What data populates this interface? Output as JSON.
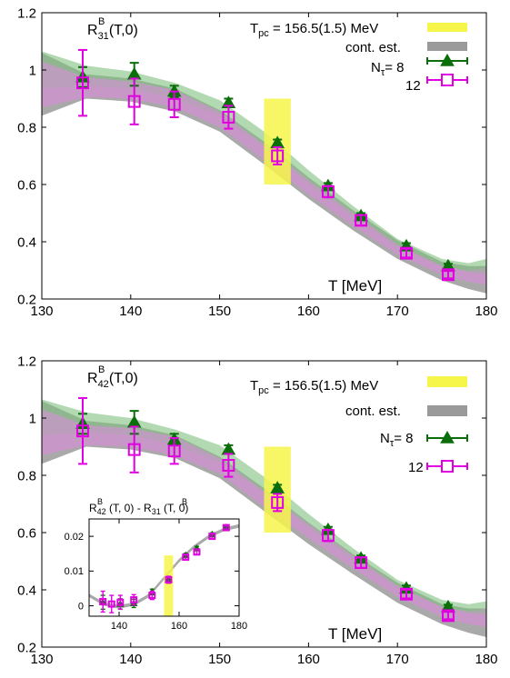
{
  "colors": {
    "nt8": "#0a6e0a",
    "nt12": "#e000e0",
    "nt8_band": "#7fbf7f",
    "nt12_band": "#e08be0",
    "cont_band": "#9a9a9a",
    "tpc_band": "#f6f64a"
  },
  "legend": {
    "tpc": "Tₚₑ = 156.5(1.5) MeV",
    "tpc_main": "T",
    "tpc_sub": "pc",
    "tpc_rest": " = 156.5(1.5) MeV",
    "cont": "cont. est.",
    "nt8_main": "N",
    "nt8_sub": "τ",
    "nt8_rest": "= 8",
    "nt12": "12"
  },
  "chart_data": [
    {
      "type": "scatter",
      "title": "R^B_31(T,0)",
      "title_main": "R",
      "title_sup": "B",
      "title_sub": "31",
      "title_rest": "(T,0)",
      "xlabel": "T [MeV]",
      "ylabel": "",
      "xlim": [
        130,
        180
      ],
      "ylim": [
        0.2,
        1.2
      ],
      "xticks": [
        130,
        140,
        150,
        160,
        170,
        180
      ],
      "xtick_labels": [
        "130",
        "140",
        "150",
        "160",
        "170",
        "180"
      ],
      "yticks": [
        0.2,
        0.4,
        0.6,
        0.8,
        1.0,
        1.2
      ],
      "ytick_labels": [
        "0.2",
        "0.4",
        "0.6",
        "0.8",
        "1",
        "1.2"
      ],
      "tpc_band": {
        "x": [
          155,
          158
        ],
        "y": [
          0.6,
          0.9
        ]
      },
      "legend_position": "top-right",
      "series": [
        {
          "name": "Nτ= 8",
          "marker": "triangle",
          "points": [
            {
              "x": 134.6,
              "y": 0.975,
              "err": 0.035
            },
            {
              "x": 140.4,
              "y": 0.985,
              "err": 0.04
            },
            {
              "x": 144.9,
              "y": 0.925,
              "err": 0.02
            },
            {
              "x": 151.0,
              "y": 0.885,
              "err": 0.015
            },
            {
              "x": 156.5,
              "y": 0.745,
              "err": 0.012
            },
            {
              "x": 162.2,
              "y": 0.595,
              "err": 0.01
            },
            {
              "x": 165.9,
              "y": 0.49,
              "err": 0.01
            },
            {
              "x": 171.0,
              "y": 0.385,
              "err": 0.01
            },
            {
              "x": 175.7,
              "y": 0.315,
              "err": 0.008
            }
          ],
          "band": {
            "x": [
              130,
              135,
              140,
              145,
              150,
              155,
              160,
              165,
              170,
              175,
              178,
              180
            ],
            "lo": [
              0.935,
              0.945,
              0.935,
              0.9,
              0.84,
              0.73,
              0.6,
              0.485,
              0.38,
              0.315,
              0.3,
              0.31
            ],
            "hi": [
              1.065,
              1.015,
              0.995,
              0.955,
              0.895,
              0.785,
              0.65,
              0.525,
              0.41,
              0.34,
              0.325,
              0.34
            ]
          }
        },
        {
          "name": "12",
          "marker": "square-open",
          "points": [
            {
              "x": 134.6,
              "y": 0.955,
              "err": 0.115
            },
            {
              "x": 140.4,
              "y": 0.89,
              "err": 0.08
            },
            {
              "x": 144.9,
              "y": 0.88,
              "err": 0.045
            },
            {
              "x": 151.0,
              "y": 0.835,
              "err": 0.04
            },
            {
              "x": 156.5,
              "y": 0.7,
              "err": 0.03
            },
            {
              "x": 162.2,
              "y": 0.575,
              "err": 0.02
            },
            {
              "x": 165.9,
              "y": 0.475,
              "err": 0.018
            },
            {
              "x": 171.0,
              "y": 0.36,
              "err": 0.015
            },
            {
              "x": 175.7,
              "y": 0.285,
              "err": 0.013
            }
          ],
          "band": {
            "x": [
              130,
              135,
              140,
              145,
              150,
              155,
              160,
              165,
              170,
              175,
              178,
              180
            ],
            "lo": [
              0.87,
              0.905,
              0.9,
              0.87,
              0.8,
              0.685,
              0.565,
              0.455,
              0.355,
              0.285,
              0.26,
              0.25
            ],
            "hi": [
              1.03,
              0.975,
              0.96,
              0.93,
              0.855,
              0.74,
              0.615,
              0.5,
              0.39,
              0.315,
              0.295,
              0.29
            ]
          }
        },
        {
          "name": "cont. est.",
          "marker": "band",
          "band": {
            "x": [
              130,
              135,
              140,
              145,
              150,
              155,
              160,
              165,
              170,
              175,
              178,
              180
            ],
            "lo": [
              0.84,
              0.9,
              0.89,
              0.855,
              0.785,
              0.67,
              0.55,
              0.44,
              0.34,
              0.265,
              0.235,
              0.22
            ],
            "hi": [
              1.06,
              0.985,
              0.97,
              0.935,
              0.86,
              0.75,
              0.625,
              0.51,
              0.405,
              0.33,
              0.315,
              0.315
            ]
          }
        }
      ]
    },
    {
      "type": "scatter",
      "title": "R^B_42(T,0)",
      "title_main": "R",
      "title_sup": "B",
      "title_sub": "42",
      "title_rest": "(T,0)",
      "xlabel": "T [MeV]",
      "ylabel": "",
      "xlim": [
        130,
        180
      ],
      "ylim": [
        0.2,
        1.2
      ],
      "xticks": [
        130,
        140,
        150,
        160,
        170,
        180
      ],
      "xtick_labels": [
        "130",
        "140",
        "150",
        "160",
        "170",
        "180"
      ],
      "yticks": [
        0.2,
        0.4,
        0.6,
        0.8,
        1.0,
        1.2
      ],
      "ytick_labels": [
        "0.2",
        "0.4",
        "0.6",
        "0.8",
        "1",
        "1.2"
      ],
      "tpc_band": {
        "x": [
          155,
          158
        ],
        "y": [
          0.6,
          0.9
        ]
      },
      "legend_position": "top-right",
      "series": [
        {
          "name": "Nτ= 8",
          "marker": "triangle",
          "points": [
            {
              "x": 134.6,
              "y": 0.98,
              "err": 0.035
            },
            {
              "x": 140.4,
              "y": 0.985,
              "err": 0.04
            },
            {
              "x": 144.9,
              "y": 0.925,
              "err": 0.02
            },
            {
              "x": 151.0,
              "y": 0.89,
              "err": 0.015
            },
            {
              "x": 156.5,
              "y": 0.755,
              "err": 0.012
            },
            {
              "x": 162.2,
              "y": 0.61,
              "err": 0.01
            },
            {
              "x": 165.9,
              "y": 0.51,
              "err": 0.01
            },
            {
              "x": 171.0,
              "y": 0.405,
              "err": 0.01
            },
            {
              "x": 175.7,
              "y": 0.34,
              "err": 0.008
            }
          ],
          "band": {
            "x": [
              130,
              135,
              140,
              145,
              150,
              155,
              160,
              165,
              170,
              175,
              178,
              180
            ],
            "lo": [
              0.94,
              0.95,
              0.94,
              0.905,
              0.845,
              0.74,
              0.615,
              0.505,
              0.405,
              0.34,
              0.325,
              0.335
            ],
            "hi": [
              1.065,
              1.02,
              1.0,
              0.96,
              0.905,
              0.795,
              0.665,
              0.545,
              0.435,
              0.365,
              0.35,
              0.36
            ]
          }
        },
        {
          "name": "12",
          "marker": "square-open",
          "points": [
            {
              "x": 134.6,
              "y": 0.955,
              "err": 0.115
            },
            {
              "x": 140.4,
              "y": 0.89,
              "err": 0.08
            },
            {
              "x": 144.9,
              "y": 0.885,
              "err": 0.045
            },
            {
              "x": 151.0,
              "y": 0.835,
              "err": 0.04
            },
            {
              "x": 156.5,
              "y": 0.705,
              "err": 0.03
            },
            {
              "x": 162.2,
              "y": 0.59,
              "err": 0.02
            },
            {
              "x": 165.9,
              "y": 0.495,
              "err": 0.018
            },
            {
              "x": 171.0,
              "y": 0.385,
              "err": 0.015
            },
            {
              "x": 175.7,
              "y": 0.31,
              "err": 0.013
            }
          ],
          "band": {
            "x": [
              130,
              135,
              140,
              145,
              150,
              155,
              160,
              165,
              170,
              175,
              178,
              180
            ],
            "lo": [
              0.87,
              0.905,
              0.9,
              0.87,
              0.805,
              0.69,
              0.58,
              0.475,
              0.375,
              0.305,
              0.28,
              0.27
            ],
            "hi": [
              1.03,
              0.975,
              0.965,
              0.935,
              0.86,
              0.745,
              0.63,
              0.52,
              0.415,
              0.34,
              0.32,
              0.315
            ]
          }
        },
        {
          "name": "cont. est.",
          "marker": "band",
          "band": {
            "x": [
              130,
              135,
              140,
              145,
              150,
              155,
              160,
              165,
              170,
              175,
              178,
              180
            ],
            "lo": [
              0.84,
              0.9,
              0.89,
              0.86,
              0.79,
              0.675,
              0.56,
              0.455,
              0.355,
              0.28,
              0.25,
              0.235
            ],
            "hi": [
              1.06,
              0.99,
              0.975,
              0.94,
              0.865,
              0.755,
              0.635,
              0.525,
              0.425,
              0.35,
              0.335,
              0.335
            ]
          }
        }
      ],
      "inset": {
        "type": "scatter",
        "title": "R^B_42 (T, 0) - R^B_31 (T, 0)",
        "title_a_main": "R",
        "title_a_sup": "B",
        "title_a_sub": "42",
        "title_a_rest": " (T, 0) - R",
        "title_b_sup": "B",
        "title_b_sub": "31",
        "title_b_rest": " (T, 0)",
        "xlim": [
          130,
          180
        ],
        "ylim": [
          -0.003,
          0.025
        ],
        "xticks": [
          140,
          160,
          180
        ],
        "xtick_labels": [
          "140",
          "160",
          "180"
        ],
        "yticks": [
          0,
          0.01,
          0.02
        ],
        "ytick_labels": [
          "0",
          "0.01",
          "0.02"
        ],
        "tpc_band": {
          "x": [
            155,
            158
          ],
          "y": [
            -0.003,
            0.0145
          ]
        },
        "series": [
          {
            "name": "Nτ= 8",
            "marker": "triangle",
            "points": [
              {
                "x": 134.6,
                "y": 0.001,
                "err": 0.002
              },
              {
                "x": 140.4,
                "y": 0.0005,
                "err": 0.0015
              },
              {
                "x": 144.9,
                "y": 0.0007,
                "err": 0.0012
              },
              {
                "x": 151.0,
                "y": 0.004,
                "err": 0.0008
              },
              {
                "x": 156.5,
                "y": 0.0075,
                "err": 0.0008
              },
              {
                "x": 162.2,
                "y": 0.0145,
                "err": 0.0006
              },
              {
                "x": 165.9,
                "y": 0.0165,
                "err": 0.0006
              },
              {
                "x": 171.0,
                "y": 0.0205,
                "err": 0.0005
              },
              {
                "x": 175.7,
                "y": 0.0225,
                "err": 0.0005
              }
            ]
          },
          {
            "name": "12",
            "marker": "square-open",
            "points": [
              {
                "x": 134.6,
                "y": 0.0012,
                "err": 0.003
              },
              {
                "x": 137.5,
                "y": 0.0005,
                "err": 0.0025
              },
              {
                "x": 140.4,
                "y": 0.001,
                "err": 0.002
              },
              {
                "x": 144.9,
                "y": 0.0017,
                "err": 0.0015
              },
              {
                "x": 151.0,
                "y": 0.003,
                "err": 0.0012
              },
              {
                "x": 156.5,
                "y": 0.0075,
                "err": 0.001
              },
              {
                "x": 162.2,
                "y": 0.014,
                "err": 0.0008
              },
              {
                "x": 165.9,
                "y": 0.0155,
                "err": 0.0008
              },
              {
                "x": 171.0,
                "y": 0.02,
                "err": 0.0007
              },
              {
                "x": 175.7,
                "y": 0.0225,
                "err": 0.0006
              }
            ]
          },
          {
            "name": "cont. est.",
            "marker": "band",
            "band": {
              "x": [
                130,
                135,
                140,
                145,
                150,
                155,
                160,
                165,
                170,
                175,
                180
              ],
              "lo": [
                0.0025,
                0.0,
                -0.0008,
                0.0,
                0.0025,
                0.0075,
                0.0125,
                0.0165,
                0.0195,
                0.0215,
                0.0225
              ],
              "hi": [
                0.0035,
                0.001,
                0.0002,
                0.001,
                0.0035,
                0.0085,
                0.0135,
                0.0175,
                0.0205,
                0.0225,
                0.0235
              ]
            }
          }
        ]
      }
    }
  ]
}
